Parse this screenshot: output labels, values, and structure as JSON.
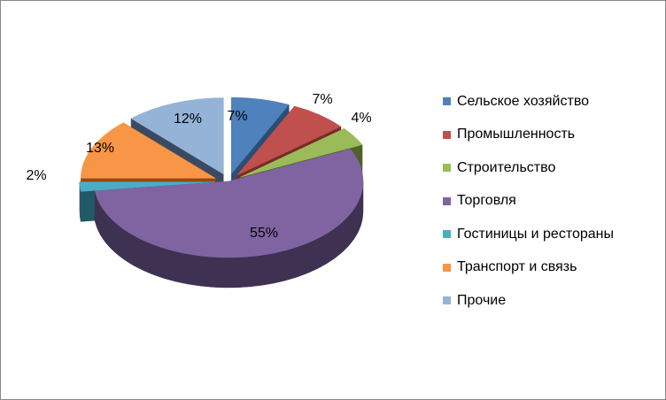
{
  "chart_data": {
    "type": "pie",
    "style": "3d-exploded",
    "legend_position": "right",
    "slices": [
      {
        "name": "Сельское хозяйство",
        "value": 7,
        "label": "7%",
        "color": "#4F81BD",
        "side": "#2C4D75"
      },
      {
        "name": "Промышленность",
        "value": 7,
        "label": "7%",
        "color": "#C0504D",
        "side": "#772C2A"
      },
      {
        "name": "Строительство",
        "value": 4,
        "label": "4%",
        "color": "#9BBB59",
        "side": "#4F6228"
      },
      {
        "name": "Торговля",
        "value": 55,
        "label": "55%",
        "color": "#8064A2",
        "side": "#3F3151"
      },
      {
        "name": "Гостиницы и рестораны",
        "value": 2,
        "label": "2%",
        "color": "#4BACC6",
        "side": "#215968"
      },
      {
        "name": "Транспорт и связь",
        "value": 13,
        "label": "13%",
        "color": "#F79646",
        "side": "#984807"
      },
      {
        "name": "Прочие",
        "value": 12,
        "label": "12%",
        "color": "#95B3D7",
        "side": "#3B4A63"
      }
    ]
  }
}
